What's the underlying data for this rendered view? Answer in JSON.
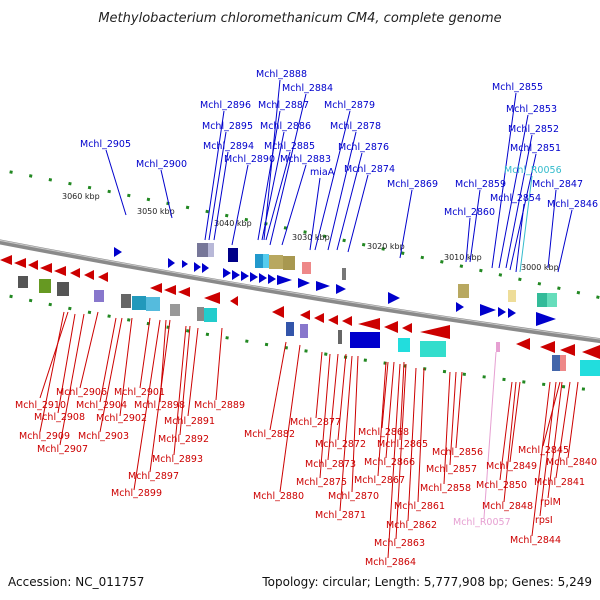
{
  "title": "Methylobacterium chloromethanicum CM4, complete genome",
  "accession": "Accession: NC_011757",
  "topology": "Topology: circular; Length: 5,777,908 bp; Genes: 5,249",
  "kbp_labels": [
    "3060 kbp",
    "3050 kbp",
    "3040 kbp",
    "3030 kbp",
    "3020 kbp",
    "3010 kbp",
    "3000 kbp"
  ],
  "colors": {
    "forward": "#0000cc",
    "reverse": "#cc0000",
    "rna_teal": "#33bbcc",
    "rna_pink": "#e6a0d2",
    "backbone": "#888888",
    "tick": "#228822"
  },
  "upper_labels": [
    {
      "text": "Mchl_2888",
      "color": "#0000cc"
    },
    {
      "text": "Mchl_2884",
      "color": "#0000cc"
    },
    {
      "text": "Mchl_2896",
      "color": "#0000cc"
    },
    {
      "text": "Mchl_2887",
      "color": "#0000cc"
    },
    {
      "text": "Mchl_2879",
      "color": "#0000cc"
    },
    {
      "text": "Mchl_2895",
      "color": "#0000cc"
    },
    {
      "text": "Mchl_2886",
      "color": "#0000cc"
    },
    {
      "text": "Mchl_2878",
      "color": "#0000cc"
    },
    {
      "text": "Mchl_2905",
      "color": "#0000cc"
    },
    {
      "text": "Mchl_2894",
      "color": "#0000cc"
    },
    {
      "text": "Mchl_2885",
      "color": "#0000cc"
    },
    {
      "text": "Mchl_2876",
      "color": "#0000cc"
    },
    {
      "text": "Mchl_2900",
      "color": "#0000cc"
    },
    {
      "text": "Mchl_2890",
      "color": "#0000cc"
    },
    {
      "text": "Mchl_2883",
      "color": "#0000cc"
    },
    {
      "text": "Mchl_2874",
      "color": "#0000cc"
    },
    {
      "text": "miaA",
      "color": "#0000cc"
    },
    {
      "text": "Mchl_2869",
      "color": "#0000cc"
    },
    {
      "text": "Mchl_2855",
      "color": "#0000cc"
    },
    {
      "text": "Mchl_2853",
      "color": "#0000cc"
    },
    {
      "text": "Mchl_2852",
      "color": "#0000cc"
    },
    {
      "text": "Mchl_2851",
      "color": "#0000cc"
    },
    {
      "text": "Mchl_R0056",
      "color": "#33bbcc"
    },
    {
      "text": "Mchl_2859",
      "color": "#0000cc"
    },
    {
      "text": "Mchl_2847",
      "color": "#0000cc"
    },
    {
      "text": "Mchl_2854",
      "color": "#0000cc"
    },
    {
      "text": "Mchl_2846",
      "color": "#0000cc"
    },
    {
      "text": "Mchl_2860",
      "color": "#0000cc"
    }
  ],
  "lower_labels": [
    {
      "text": "Mchl_2906",
      "color": "#cc0000"
    },
    {
      "text": "Mchl_2901",
      "color": "#cc0000"
    },
    {
      "text": "Mchl_2910",
      "color": "#cc0000"
    },
    {
      "text": "Mchl_2904",
      "color": "#cc0000"
    },
    {
      "text": "Mchl_2898",
      "color": "#cc0000"
    },
    {
      "text": "Mchl_2889",
      "color": "#cc0000"
    },
    {
      "text": "Mchl_2908",
      "color": "#cc0000"
    },
    {
      "text": "Mchl_2902",
      "color": "#cc0000"
    },
    {
      "text": "Mchl_2891",
      "color": "#cc0000"
    },
    {
      "text": "Mchl_2909",
      "color": "#cc0000"
    },
    {
      "text": "Mchl_2903",
      "color": "#cc0000"
    },
    {
      "text": "Mchl_2892",
      "color": "#cc0000"
    },
    {
      "text": "Mchl_2907",
      "color": "#cc0000"
    },
    {
      "text": "Mchl_2893",
      "color": "#cc0000"
    },
    {
      "text": "Mchl_2897",
      "color": "#cc0000"
    },
    {
      "text": "Mchl_2899",
      "color": "#cc0000"
    },
    {
      "text": "Mchl_2877",
      "color": "#cc0000"
    },
    {
      "text": "Mchl_2882",
      "color": "#cc0000"
    },
    {
      "text": "Mchl_2872",
      "color": "#cc0000"
    },
    {
      "text": "Mchl_2873",
      "color": "#cc0000"
    },
    {
      "text": "Mchl_2875",
      "color": "#cc0000"
    },
    {
      "text": "Mchl_2880",
      "color": "#cc0000"
    },
    {
      "text": "Mchl_2870",
      "color": "#cc0000"
    },
    {
      "text": "Mchl_2871",
      "color": "#cc0000"
    },
    {
      "text": "Mchl_2868",
      "color": "#cc0000"
    },
    {
      "text": "Mchl_2865",
      "color": "#cc0000"
    },
    {
      "text": "Mchl_2866",
      "color": "#cc0000"
    },
    {
      "text": "Mchl_2867",
      "color": "#cc0000"
    },
    {
      "text": "Mchl_2861",
      "color": "#cc0000"
    },
    {
      "text": "Mchl_2862",
      "color": "#cc0000"
    },
    {
      "text": "Mchl_2863",
      "color": "#cc0000"
    },
    {
      "text": "Mchl_2864",
      "color": "#cc0000"
    },
    {
      "text": "Mchl_2856",
      "color": "#cc0000"
    },
    {
      "text": "Mchl_2857",
      "color": "#cc0000"
    },
    {
      "text": "Mchl_2858",
      "color": "#cc0000"
    },
    {
      "text": "Mchl_2849",
      "color": "#cc0000"
    },
    {
      "text": "Mchl_2850",
      "color": "#cc0000"
    },
    {
      "text": "Mchl_2848",
      "color": "#cc0000"
    },
    {
      "text": "Mchl_R0057",
      "color": "#e6a0d2"
    },
    {
      "text": "Mchl_2845",
      "color": "#cc0000"
    },
    {
      "text": "Mchl_2840",
      "color": "#cc0000"
    },
    {
      "text": "Mchl_2841",
      "color": "#cc0000"
    },
    {
      "text": "rplM",
      "color": "#cc0000"
    },
    {
      "text": "rpsI",
      "color": "#cc0000"
    },
    {
      "text": "Mchl_2844",
      "color": "#cc0000"
    }
  ]
}
